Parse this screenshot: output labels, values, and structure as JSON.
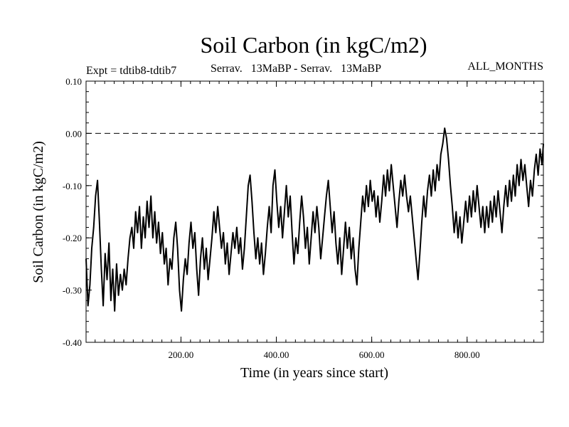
{
  "chart_data": {
    "type": "line",
    "title": "Soil Carbon (in kgC/m2)",
    "expt_label": "Expt = tdtib8-tdtib7",
    "subtitle": "Serrav.   13MaBP - Serrav.   13MaBP",
    "period_label": "ALL_MONTHS",
    "xlabel": "Time (in years since start)",
    "ylabel": "Soil Carbon (in kgC/m2)",
    "xlim": [
      1,
      960
    ],
    "ylim": [
      -0.4,
      0.1
    ],
    "x_ticks": [
      200,
      400,
      600,
      800
    ],
    "x_tick_labels": [
      "200.00",
      "400.00",
      "600.00",
      "800.00"
    ],
    "y_ticks": [
      0.1,
      0.0,
      -0.1,
      -0.2,
      -0.3,
      -0.4
    ],
    "y_tick_labels": [
      "0.10",
      "0.00",
      "-0.10",
      "-0.20",
      "-0.30",
      "-0.40"
    ],
    "reference_line": {
      "y": 0.0,
      "style": "dashed"
    },
    "series": [
      {
        "name": "Soil Carbon",
        "color": "#000000",
        "points": [
          [
            1,
            -0.24
          ],
          [
            5,
            -0.33
          ],
          [
            9,
            -0.29
          ],
          [
            13,
            -0.22
          ],
          [
            17,
            -0.18
          ],
          [
            21,
            -0.12
          ],
          [
            25,
            -0.09
          ],
          [
            29,
            -0.17
          ],
          [
            33,
            -0.26
          ],
          [
            37,
            -0.33
          ],
          [
            41,
            -0.23
          ],
          [
            45,
            -0.28
          ],
          [
            49,
            -0.21
          ],
          [
            53,
            -0.32
          ],
          [
            57,
            -0.26
          ],
          [
            61,
            -0.34
          ],
          [
            65,
            -0.25
          ],
          [
            69,
            -0.31
          ],
          [
            73,
            -0.27
          ],
          [
            77,
            -0.3
          ],
          [
            81,
            -0.26
          ],
          [
            85,
            -0.29
          ],
          [
            89,
            -0.24
          ],
          [
            93,
            -0.2
          ],
          [
            97,
            -0.18
          ],
          [
            101,
            -0.22
          ],
          [
            105,
            -0.15
          ],
          [
            109,
            -0.19
          ],
          [
            113,
            -0.14
          ],
          [
            117,
            -0.22
          ],
          [
            121,
            -0.16
          ],
          [
            125,
            -0.2
          ],
          [
            129,
            -0.13
          ],
          [
            133,
            -0.18
          ],
          [
            137,
            -0.12
          ],
          [
            141,
            -0.2
          ],
          [
            145,
            -0.15
          ],
          [
            149,
            -0.21
          ],
          [
            153,
            -0.17
          ],
          [
            157,
            -0.23
          ],
          [
            161,
            -0.19
          ],
          [
            165,
            -0.25
          ],
          [
            169,
            -0.22
          ],
          [
            173,
            -0.29
          ],
          [
            177,
            -0.24
          ],
          [
            181,
            -0.26
          ],
          [
            185,
            -0.2
          ],
          [
            189,
            -0.17
          ],
          [
            193,
            -0.22
          ],
          [
            197,
            -0.3
          ],
          [
            201,
            -0.34
          ],
          [
            205,
            -0.28
          ],
          [
            209,
            -0.24
          ],
          [
            213,
            -0.27
          ],
          [
            217,
            -0.21
          ],
          [
            221,
            -0.17
          ],
          [
            225,
            -0.22
          ],
          [
            229,
            -0.19
          ],
          [
            233,
            -0.26
          ],
          [
            237,
            -0.31
          ],
          [
            241,
            -0.24
          ],
          [
            245,
            -0.2
          ],
          [
            249,
            -0.26
          ],
          [
            253,
            -0.22
          ],
          [
            257,
            -0.28
          ],
          [
            261,
            -0.24
          ],
          [
            265,
            -0.2
          ],
          [
            269,
            -0.15
          ],
          [
            273,
            -0.19
          ],
          [
            277,
            -0.14
          ],
          [
            281,
            -0.18
          ],
          [
            285,
            -0.22
          ],
          [
            289,
            -0.19
          ],
          [
            293,
            -0.25
          ],
          [
            297,
            -0.21
          ],
          [
            301,
            -0.27
          ],
          [
            305,
            -0.23
          ],
          [
            309,
            -0.19
          ],
          [
            313,
            -0.22
          ],
          [
            317,
            -0.18
          ],
          [
            321,
            -0.23
          ],
          [
            325,
            -0.2
          ],
          [
            329,
            -0.26
          ],
          [
            333,
            -0.22
          ],
          [
            337,
            -0.16
          ],
          [
            341,
            -0.1
          ],
          [
            345,
            -0.08
          ],
          [
            349,
            -0.13
          ],
          [
            353,
            -0.19
          ],
          [
            357,
            -0.24
          ],
          [
            361,
            -0.2
          ],
          [
            365,
            -0.25
          ],
          [
            369,
            -0.21
          ],
          [
            373,
            -0.27
          ],
          [
            377,
            -0.23
          ],
          [
            381,
            -0.18
          ],
          [
            385,
            -0.14
          ],
          [
            389,
            -0.19
          ],
          [
            393,
            -0.1
          ],
          [
            397,
            -0.07
          ],
          [
            401,
            -0.13
          ],
          [
            405,
            -0.18
          ],
          [
            409,
            -0.14
          ],
          [
            413,
            -0.2
          ],
          [
            417,
            -0.15
          ],
          [
            421,
            -0.1
          ],
          [
            425,
            -0.16
          ],
          [
            429,
            -0.12
          ],
          [
            433,
            -0.19
          ],
          [
            437,
            -0.25
          ],
          [
            441,
            -0.2
          ],
          [
            445,
            -0.23
          ],
          [
            449,
            -0.17
          ],
          [
            453,
            -0.12
          ],
          [
            457,
            -0.16
          ],
          [
            461,
            -0.22
          ],
          [
            465,
            -0.18
          ],
          [
            469,
            -0.25
          ],
          [
            473,
            -0.2
          ],
          [
            477,
            -0.15
          ],
          [
            481,
            -0.19
          ],
          [
            485,
            -0.14
          ],
          [
            489,
            -0.18
          ],
          [
            493,
            -0.24
          ],
          [
            497,
            -0.2
          ],
          [
            501,
            -0.16
          ],
          [
            505,
            -0.12
          ],
          [
            509,
            -0.09
          ],
          [
            513,
            -0.14
          ],
          [
            517,
            -0.19
          ],
          [
            521,
            -0.15
          ],
          [
            525,
            -0.21
          ],
          [
            529,
            -0.25
          ],
          [
            533,
            -0.2
          ],
          [
            537,
            -0.27
          ],
          [
            541,
            -0.22
          ],
          [
            545,
            -0.17
          ],
          [
            549,
            -0.22
          ],
          [
            553,
            -0.18
          ],
          [
            557,
            -0.24
          ],
          [
            561,
            -0.2
          ],
          [
            565,
            -0.26
          ],
          [
            569,
            -0.29
          ],
          [
            573,
            -0.22
          ],
          [
            577,
            -0.17
          ],
          [
            581,
            -0.12
          ],
          [
            585,
            -0.15
          ],
          [
            589,
            -0.1
          ],
          [
            593,
            -0.14
          ],
          [
            597,
            -0.09
          ],
          [
            601,
            -0.13
          ],
          [
            605,
            -0.11
          ],
          [
            609,
            -0.16
          ],
          [
            613,
            -0.12
          ],
          [
            617,
            -0.17
          ],
          [
            621,
            -0.13
          ],
          [
            625,
            -0.08
          ],
          [
            629,
            -0.12
          ],
          [
            633,
            -0.07
          ],
          [
            637,
            -0.11
          ],
          [
            641,
            -0.06
          ],
          [
            645,
            -0.1
          ],
          [
            649,
            -0.14
          ],
          [
            653,
            -0.18
          ],
          [
            657,
            -0.13
          ],
          [
            661,
            -0.09
          ],
          [
            665,
            -0.12
          ],
          [
            669,
            -0.08
          ],
          [
            673,
            -0.12
          ],
          [
            677,
            -0.15
          ],
          [
            681,
            -0.12
          ],
          [
            685,
            -0.16
          ],
          [
            689,
            -0.2
          ],
          [
            693,
            -0.24
          ],
          [
            697,
            -0.28
          ],
          [
            701,
            -0.23
          ],
          [
            705,
            -0.17
          ],
          [
            709,
            -0.12
          ],
          [
            713,
            -0.16
          ],
          [
            717,
            -0.11
          ],
          [
            721,
            -0.08
          ],
          [
            725,
            -0.12
          ],
          [
            729,
            -0.07
          ],
          [
            733,
            -0.11
          ],
          [
            737,
            -0.06
          ],
          [
            741,
            -0.09
          ],
          [
            745,
            -0.04
          ],
          [
            749,
            -0.02
          ],
          [
            753,
            0.01
          ],
          [
            757,
            -0.01
          ],
          [
            761,
            -0.05
          ],
          [
            765,
            -0.1
          ],
          [
            769,
            -0.14
          ],
          [
            773,
            -0.19
          ],
          [
            777,
            -0.15
          ],
          [
            781,
            -0.2
          ],
          [
            785,
            -0.16
          ],
          [
            789,
            -0.21
          ],
          [
            793,
            -0.17
          ],
          [
            797,
            -0.13
          ],
          [
            801,
            -0.17
          ],
          [
            805,
            -0.12
          ],
          [
            809,
            -0.16
          ],
          [
            813,
            -0.11
          ],
          [
            817,
            -0.15
          ],
          [
            821,
            -0.1
          ],
          [
            825,
            -0.14
          ],
          [
            829,
            -0.18
          ],
          [
            833,
            -0.14
          ],
          [
            837,
            -0.19
          ],
          [
            841,
            -0.14
          ],
          [
            845,
            -0.18
          ],
          [
            849,
            -0.13
          ],
          [
            853,
            -0.17
          ],
          [
            857,
            -0.12
          ],
          [
            861,
            -0.16
          ],
          [
            865,
            -0.11
          ],
          [
            869,
            -0.15
          ],
          [
            873,
            -0.19
          ],
          [
            877,
            -0.14
          ],
          [
            881,
            -0.1
          ],
          [
            885,
            -0.14
          ],
          [
            889,
            -0.09
          ],
          [
            893,
            -0.13
          ],
          [
            897,
            -0.08
          ],
          [
            901,
            -0.12
          ],
          [
            905,
            -0.06
          ],
          [
            909,
            -0.1
          ],
          [
            913,
            -0.05
          ],
          [
            917,
            -0.09
          ],
          [
            921,
            -0.06
          ],
          [
            925,
            -0.1
          ],
          [
            929,
            -0.14
          ],
          [
            933,
            -0.09
          ],
          [
            937,
            -0.12
          ],
          [
            941,
            -0.07
          ],
          [
            945,
            -0.04
          ],
          [
            949,
            -0.08
          ],
          [
            953,
            -0.03
          ],
          [
            957,
            -0.06
          ],
          [
            960,
            -0.02
          ]
        ]
      }
    ]
  }
}
